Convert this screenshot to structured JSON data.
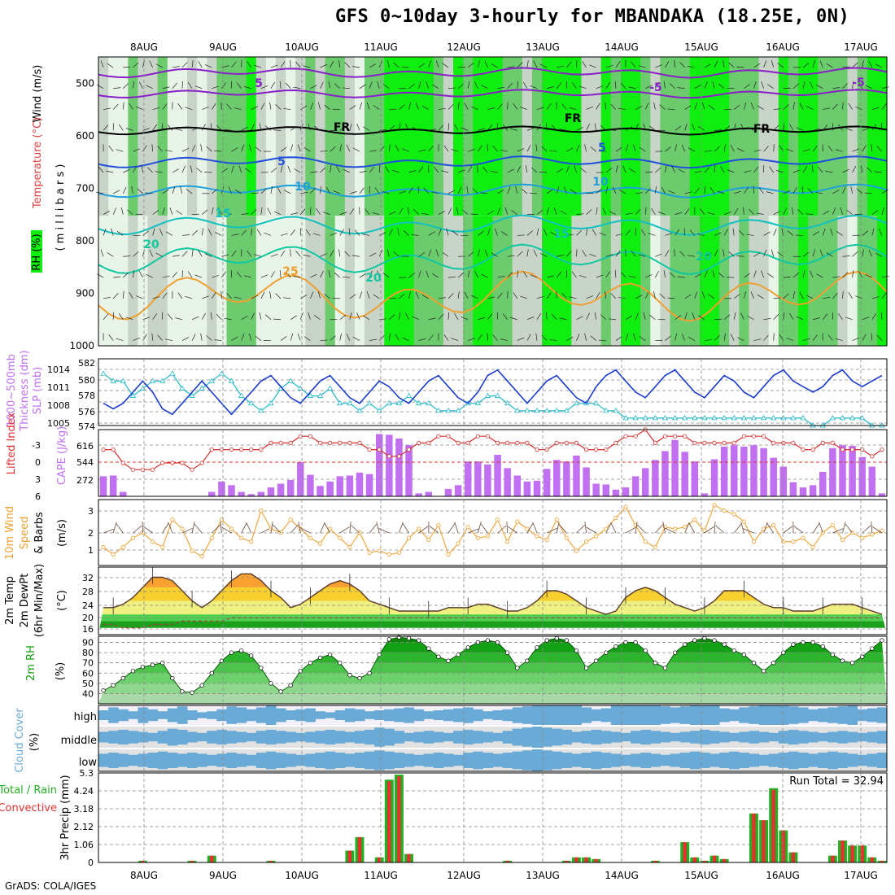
{
  "title": "GFS 0~10day 3-hourly for MBANDAKA (18.25E, 0N)",
  "footer": "GrADS: COLA/IGES",
  "dates": [
    "8AUG",
    "9AUG",
    "10AUG",
    "11AUG",
    "12AUG",
    "13AUG",
    "14AUG",
    "15AUG",
    "16AUG",
    "17AUG"
  ],
  "colors": {
    "rh_light": "#e8f4e8",
    "rh_gray": "#c8d4c8",
    "rh_med": "#6ccb6c",
    "rh_bright": "#10ee10",
    "temp_purple": "#8a1ec8",
    "temp_black": "#000000",
    "temp_blue": "#1e50dc",
    "temp_lightblue": "#1ea0dc",
    "temp_cyan": "#10c0c0",
    "temp_teal": "#10c8a0",
    "temp_orange": "#f0a030",
    "thickness": "#20b8c8",
    "slp": "#1a3ccc",
    "cape": "#c070f0",
    "lifted": "#d83030",
    "wind": "#f0a030",
    "temp_max": "#f06010",
    "dewpt": "#a04040",
    "rh2m": "#12a012",
    "cloud": "#6aaad6",
    "precip_total": "#22b022",
    "precip_conv": "#e83030"
  },
  "panels": [
    {
      "id": "upper",
      "ylabels": [
        "Wind (m/s)",
        "Temperature (°C)",
        "RH (%)",
        "( m i l l i b a r s )"
      ],
      "ticks": [
        "500",
        "600",
        "700",
        "800",
        "900",
        "1000"
      ]
    },
    {
      "id": "thickness",
      "ylabels": [
        "1000~500mb",
        "Thickness (dm)",
        "SLP (mb)"
      ],
      "ticks_left": [
        "582",
        "580",
        "578",
        "576",
        "574"
      ],
      "ticks_right": [
        "1014",
        "1011",
        "1008",
        "1005"
      ]
    },
    {
      "id": "cape",
      "ylabels": [
        "Lifted Index",
        "CAPE (J/kg)"
      ],
      "ticks_left": [
        "-3",
        "0",
        "3",
        "6"
      ],
      "ticks_right": [
        "616",
        "544",
        "272"
      ]
    },
    {
      "id": "wind",
      "ylabels": [
        "10m Wind",
        "Speed",
        "& Barbs",
        "(m/s)"
      ],
      "ticks": [
        "3",
        "2",
        "1"
      ]
    },
    {
      "id": "temp",
      "ylabels": [
        "2m Temp",
        "2m DewPt",
        "(6hr Min/Max)",
        "(°C)"
      ],
      "ticks": [
        "32",
        "28",
        "24",
        "20",
        "16"
      ]
    },
    {
      "id": "rh",
      "ylabels": [
        "2m RH",
        "(%)"
      ],
      "ticks": [
        "90",
        "80",
        "70",
        "60",
        "50",
        "40"
      ]
    },
    {
      "id": "cloud",
      "ylabels": [
        "Cloud Cover",
        "(%)"
      ],
      "ticks": [
        "high",
        "middle",
        "low"
      ]
    },
    {
      "id": "precip",
      "ylabels": [
        "3hr Precip (mm)",
        "Total / Rain",
        "Convective"
      ],
      "ticks": [
        "5.3",
        "4.24",
        "3.18",
        "2.12",
        "1.06",
        "0"
      ],
      "annotation": "Run Total = 32.94"
    }
  ],
  "contour_labels": [
    "5",
    "FR",
    "5",
    "10",
    "15",
    "20",
    "25",
    "20",
    "-5",
    "-5",
    "FR",
    "FR",
    "5",
    "10",
    "15",
    "20"
  ],
  "chart_data": {
    "type": "line",
    "x": [
      "8AUG",
      "9AUG",
      "10AUG",
      "11AUG",
      "12AUG",
      "13AUG",
      "14AUG",
      "15AUG",
      "16AUG",
      "17AUG"
    ],
    "thickness_dm": [
      581,
      580,
      580,
      578,
      579,
      580,
      580,
      581,
      579,
      578,
      579,
      580,
      581,
      580,
      578,
      577,
      576,
      577,
      579,
      580,
      579,
      578,
      578,
      579,
      577,
      577,
      576,
      577,
      576,
      577,
      577,
      578,
      577,
      577,
      576,
      576,
      576,
      577,
      577,
      578,
      578,
      577,
      576,
      576,
      576,
      576,
      576,
      576,
      577,
      577,
      577,
      576,
      576,
      575,
      575,
      575,
      575,
      575,
      575,
      575,
      575,
      575,
      575,
      575,
      575,
      575,
      575,
      575,
      575,
      575,
      575,
      575,
      574,
      574,
      575,
      575,
      575,
      575,
      574,
      574
    ],
    "slp_mb": [
      1008,
      1007,
      1008,
      1010,
      1012,
      1010,
      1007,
      1006,
      1008,
      1010,
      1012,
      1010,
      1008,
      1006,
      1008,
      1010,
      1012,
      1013,
      1011,
      1009,
      1008,
      1010,
      1012,
      1013,
      1011,
      1009,
      1008,
      1010,
      1012,
      1011,
      1009,
      1008,
      1010,
      1012,
      1013,
      1011,
      1009,
      1008,
      1010,
      1013,
      1014,
      1012,
      1010,
      1008,
      1010,
      1012,
      1013,
      1011,
      1009,
      1008,
      1011,
      1013,
      1014,
      1012,
      1010,
      1009,
      1011,
      1013,
      1014,
      1012,
      1010,
      1009,
      1011,
      1013,
      1012,
      1010,
      1009,
      1011,
      1013,
      1014,
      1012,
      1011,
      1010,
      1011,
      1013,
      1014,
      1012,
      1011,
      1012,
      1013
    ],
    "cape_jkg": [
      270,
      280,
      60,
      0,
      0,
      0,
      0,
      0,
      0,
      0,
      0,
      60,
      200,
      150,
      60,
      30,
      60,
      120,
      170,
      220,
      460,
      290,
      140,
      200,
      270,
      280,
      320,
      300,
      840,
      830,
      780,
      690,
      40,
      60,
      0,
      100,
      150,
      470,
      470,
      430,
      560,
      380,
      280,
      200,
      210,
      370,
      490,
      470,
      550,
      390,
      170,
      160,
      90,
      120,
      270,
      380,
      490,
      610,
      760,
      600,
      470,
      40,
      500,
      670,
      690,
      670,
      690,
      650,
      520,
      400,
      190,
      120,
      150,
      330,
      650,
      690,
      680,
      530,
      400,
      40
    ],
    "lifted_index": [
      -1,
      -1,
      1,
      2,
      2,
      2,
      1,
      1,
      1,
      2,
      1,
      -1,
      -1,
      -1,
      -1,
      -1,
      -1,
      -2,
      -2,
      -2,
      -3,
      -3,
      -2,
      -2,
      -2,
      -2,
      -2,
      -1,
      -1,
      0,
      0,
      -1,
      -2,
      -2,
      -3,
      -3,
      -2,
      -2,
      -3,
      -3,
      -2,
      -2,
      -2,
      -2,
      -1,
      -1,
      -2,
      -2,
      -2,
      -1,
      -1,
      -1,
      -2,
      -3,
      -3,
      -4,
      -2,
      -3,
      -3,
      -3,
      -2,
      -2,
      -2,
      -2,
      -2,
      -3,
      -3,
      -3,
      -2,
      -2,
      -2,
      -1,
      -1,
      -2,
      -2,
      -1,
      -1,
      -1,
      0,
      -1
    ],
    "wind10m_ms": [
      1.0,
      0.6,
      1.0,
      1.5,
      1.8,
      1.3,
      1.0,
      2.5,
      2.0,
      0.8,
      0.5,
      1.5,
      2.5,
      2.0,
      1.5,
      1.3,
      3.0,
      2.0,
      1.8,
      2.5,
      2.0,
      1.5,
      1.2,
      2.0,
      1.5,
      1.0,
      1.8,
      0.7,
      0.8,
      0.6,
      0.7,
      1.5,
      2.0,
      1.4,
      2.2,
      0.6,
      1.2,
      2.1,
      1.5,
      1.6,
      2.5,
      1.3,
      2.4,
      2.0,
      1.6,
      1.4,
      2.5,
      1.5,
      0.8,
      1.3,
      1.6,
      2.0,
      2.6,
      3.2,
      2.2,
      1.3,
      1.0,
      2.1,
      2.0,
      2.1,
      2.5,
      1.9,
      3.3,
      3.0,
      2.8,
      2.4,
      1.3,
      2.0,
      2.2,
      1.3,
      1.3,
      1.5,
      1.0,
      1.8,
      2.2,
      1.4,
      1.8,
      1.5,
      1.7,
      1.9
    ],
    "temp2m_c": [
      22,
      22,
      23,
      25,
      28,
      31,
      31,
      30,
      27,
      24,
      22,
      24,
      27,
      30,
      32,
      32,
      30,
      27,
      25,
      22,
      23,
      25,
      27,
      29,
      30,
      29,
      27,
      24,
      23,
      22,
      21,
      21,
      21,
      21,
      21,
      22,
      22,
      22,
      23,
      23,
      22,
      21,
      21,
      22,
      24,
      27,
      27,
      26,
      24,
      22,
      21,
      20,
      21,
      25,
      27,
      28,
      27,
      25,
      23,
      22,
      21,
      22,
      24,
      27,
      27,
      27,
      25,
      23,
      22,
      22,
      21,
      21,
      21,
      22,
      23,
      23,
      23,
      22,
      21,
      20
    ],
    "dewpt2m_c": [
      17,
      17,
      16,
      16,
      16,
      17,
      17,
      17,
      18,
      18,
      18,
      18,
      18,
      19,
      19,
      19,
      19,
      19,
      19,
      19,
      19,
      19,
      19,
      19,
      19,
      19,
      19,
      19,
      19,
      19,
      19,
      19,
      19,
      19,
      19,
      19,
      19,
      19,
      19,
      19,
      19,
      19,
      19,
      19,
      19,
      19,
      19,
      19,
      19,
      19,
      19,
      19,
      19,
      19,
      19,
      19,
      19,
      19,
      19,
      19,
      19,
      19,
      19,
      19,
      19,
      19,
      19,
      19,
      19,
      19,
      19,
      19,
      19,
      19,
      19,
      19,
      19,
      19,
      19,
      19
    ],
    "rh2m_pct": [
      43,
      48,
      55,
      62,
      66,
      68,
      70,
      55,
      42,
      41,
      48,
      60,
      72,
      80,
      82,
      77,
      65,
      50,
      42,
      48,
      62,
      70,
      75,
      78,
      70,
      58,
      55,
      60,
      78,
      93,
      95,
      94,
      92,
      84,
      76,
      72,
      78,
      85,
      90,
      92,
      90,
      80,
      65,
      72,
      85,
      92,
      94,
      92,
      82,
      65,
      72,
      80,
      86,
      90,
      90,
      82,
      70,
      65,
      80,
      88,
      92,
      94,
      92,
      88,
      82,
      78,
      70,
      62,
      70,
      80,
      88,
      90,
      90,
      86,
      78,
      72,
      70,
      76,
      84,
      92
    ],
    "cloud_high_pct": [
      50,
      80,
      60,
      40,
      80,
      60,
      40,
      70,
      90,
      50,
      30,
      40,
      60,
      90,
      80,
      60,
      80,
      100,
      70,
      50,
      60,
      70,
      40,
      30,
      50,
      70,
      60,
      40,
      50,
      60,
      70,
      80,
      60,
      40,
      50,
      60,
      70,
      80,
      60,
      40,
      50,
      60,
      80,
      90,
      100,
      100,
      100,
      100,
      100,
      80,
      60,
      70,
      100,
      100,
      100,
      100,
      100,
      90,
      80,
      90,
      100,
      100,
      100,
      70,
      60,
      80,
      90,
      100,
      100,
      100,
      90,
      80,
      60,
      70,
      80,
      90,
      100,
      60,
      70,
      80
    ],
    "cloud_mid_pct": [
      50,
      60,
      70,
      60,
      50,
      40,
      60,
      80,
      70,
      50,
      40,
      60,
      70,
      60,
      50,
      40,
      60,
      70,
      60,
      50,
      40,
      50,
      60,
      70,
      60,
      50,
      60,
      70,
      90,
      80,
      60,
      40,
      50,
      60,
      50,
      40,
      60,
      70,
      60,
      50,
      40,
      60,
      80,
      90,
      100,
      90,
      80,
      70,
      50,
      60,
      70,
      60,
      50,
      40,
      60,
      70,
      60,
      50,
      40,
      50,
      60,
      70,
      60,
      50,
      40,
      50,
      60,
      50,
      40,
      60,
      70,
      60,
      50,
      40,
      50,
      60,
      50,
      40,
      50,
      60
    ],
    "cloud_low_pct": [
      60,
      70,
      60,
      50,
      60,
      70,
      80,
      70,
      60,
      70,
      60,
      50,
      60,
      70,
      60,
      50,
      70,
      80,
      70,
      60,
      50,
      60,
      70,
      80,
      70,
      60,
      70,
      80,
      90,
      80,
      70,
      60,
      50,
      60,
      70,
      60,
      50,
      70,
      80,
      70,
      60,
      70,
      80,
      90,
      100,
      90,
      80,
      70,
      60,
      70,
      80,
      70,
      60,
      50,
      60,
      70,
      60,
      50,
      60,
      70,
      80,
      70,
      60,
      70,
      80,
      70,
      60,
      50,
      60,
      70,
      80,
      70,
      60,
      70,
      80,
      70,
      60,
      50,
      60,
      70
    ],
    "precip_total_mm": [
      0,
      0,
      0,
      0,
      0.1,
      0,
      0,
      0,
      0,
      0.1,
      0,
      0.4,
      0,
      0,
      0,
      0,
      0,
      0.1,
      0,
      0,
      0,
      0,
      0,
      0,
      0,
      0.7,
      1.5,
      0,
      0.3,
      4.9,
      5.2,
      0.5,
      0,
      0,
      0,
      0,
      0,
      0,
      0,
      0,
      0,
      0.1,
      0,
      0,
      0,
      0,
      0,
      0.1,
      0.3,
      0.3,
      0.2,
      0,
      0,
      0,
      0,
      0,
      0.1,
      0,
      0,
      1.2,
      0.3,
      0.1,
      0.4,
      0.2,
      0,
      0,
      2.9,
      2.5,
      4.4,
      1.9,
      0.6,
      0,
      0,
      0,
      0.4,
      1.3,
      1.0,
      1.0,
      0.3,
      0.1
    ],
    "precip_conv_mm": [
      0,
      0,
      0,
      0,
      0.1,
      0,
      0,
      0,
      0,
      0.1,
      0,
      0.4,
      0,
      0,
      0,
      0,
      0,
      0.1,
      0,
      0,
      0,
      0,
      0,
      0,
      0,
      0.7,
      1.5,
      0,
      0.3,
      4.8,
      5.1,
      0.5,
      0,
      0,
      0,
      0,
      0,
      0,
      0,
      0,
      0,
      0.1,
      0,
      0,
      0,
      0,
      0,
      0.1,
      0.3,
      0.3,
      0.2,
      0,
      0,
      0,
      0,
      0,
      0.1,
      0,
      0,
      1.2,
      0.3,
      0.1,
      0.4,
      0.2,
      0,
      0,
      2.9,
      2.5,
      4.3,
      1.9,
      0.6,
      0,
      0,
      0,
      0.4,
      1.3,
      1.0,
      1.0,
      0.3,
      0.1
    ],
    "run_total_mm": 32.94,
    "ylim": {
      "thickness_dm": [
        574,
        583
      ],
      "slp_mb": [
        1004,
        1016
      ],
      "cape_jkg": [
        0,
        900
      ],
      "lifted_index": [
        -4,
        6
      ],
      "wind10m_ms": [
        0,
        3.6
      ],
      "temp2m_c": [
        14,
        34
      ],
      "rh2m_pct": [
        30,
        96
      ],
      "precip_mm": [
        0,
        5.3
      ]
    }
  }
}
